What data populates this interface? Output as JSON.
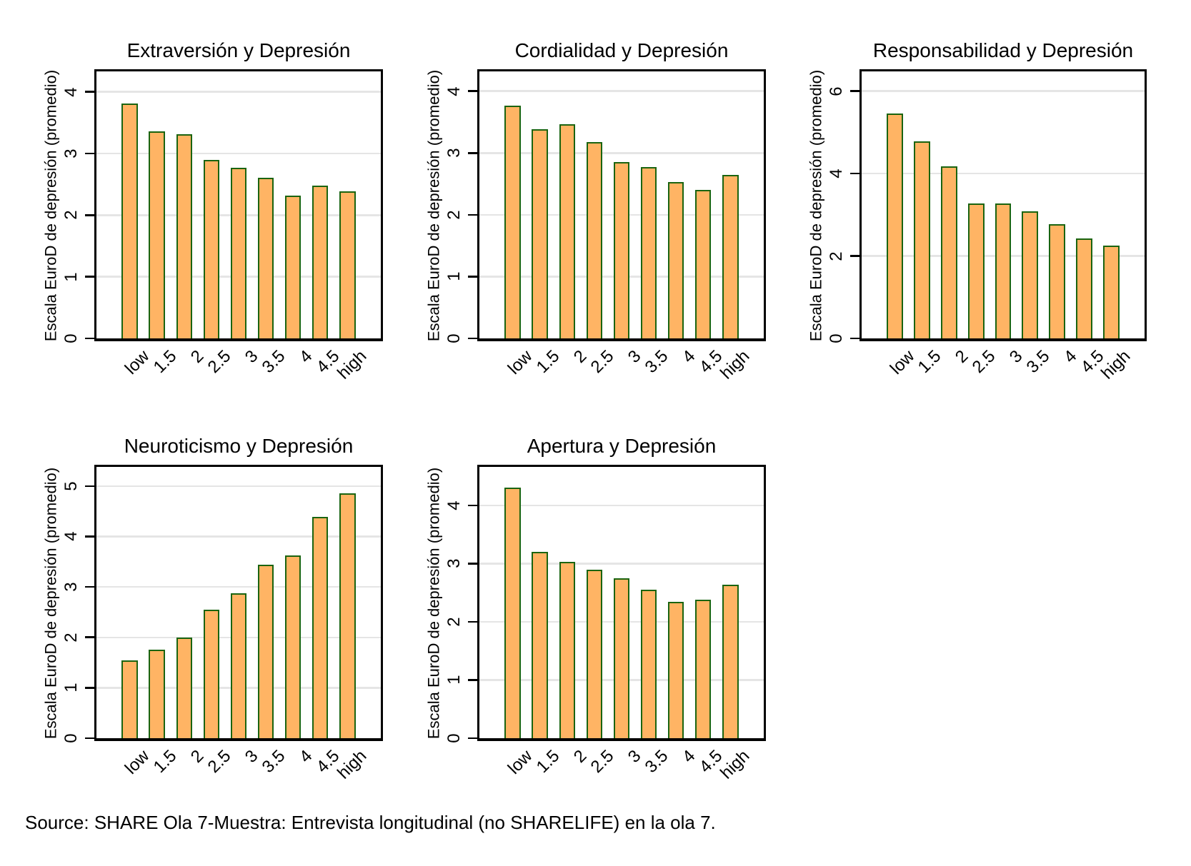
{
  "figure": {
    "source_note": "Source: SHARE Ola 7-Muestra: Entrevista longitudinal (no SHARELIFE) en la ola 7.",
    "colors": {
      "bar_fill": "#FFB464",
      "bar_border": "#1A6410",
      "gridline": "#E5E5E5",
      "frame": "#000000",
      "background": "#FFFFFF"
    }
  },
  "chart_data": [
    {
      "type": "bar",
      "title": "Extraversión y Depresión",
      "xlabel": "",
      "ylabel": "Escala EuroD de depresión (promedio)",
      "categories": [
        "low",
        "1.5",
        "2",
        "2.5",
        "3",
        "3.5",
        "4",
        "4.5",
        "high"
      ],
      "values": [
        3.81,
        3.36,
        3.31,
        2.89,
        2.77,
        2.61,
        2.31,
        2.48,
        2.39
      ],
      "yticks": [
        0,
        1,
        2,
        3,
        4
      ],
      "ylim": [
        0,
        4.33
      ],
      "grid": true,
      "legend": "none"
    },
    {
      "type": "bar",
      "title": "Cordialidad y Depresión",
      "xlabel": "",
      "ylabel": "Escala EuroD de depresión (promedio)",
      "categories": [
        "low",
        "1.5",
        "2",
        "2.5",
        "3",
        "3.5",
        "4",
        "4.5",
        "high"
      ],
      "values": [
        3.77,
        3.38,
        3.46,
        3.18,
        2.85,
        2.77,
        2.53,
        2.4,
        2.65
      ],
      "yticks": [
        0,
        1,
        2,
        3,
        4
      ],
      "ylim": [
        0,
        4.32
      ],
      "grid": true,
      "legend": "none"
    },
    {
      "type": "bar",
      "title": "Responsabilidad y Depresión",
      "xlabel": "",
      "ylabel": "Escala EuroD de depresión (promedio)",
      "categories": [
        "low",
        "1.5",
        "2",
        "2.5",
        "3",
        "3.5",
        "4",
        "4.5",
        "high"
      ],
      "values": [
        5.46,
        4.79,
        4.18,
        3.28,
        3.27,
        3.08,
        2.77,
        2.42,
        2.25
      ],
      "yticks": [
        0,
        2,
        4,
        6
      ],
      "ylim": [
        0,
        6.48
      ],
      "grid": true,
      "legend": "none"
    },
    {
      "type": "bar",
      "title": "Neuroticismo y Depresión",
      "xlabel": "",
      "ylabel": "Escala EuroD de depresión (promedio)",
      "categories": [
        "low",
        "1.5",
        "2",
        "2.5",
        "3",
        "3.5",
        "4",
        "4.5",
        "high"
      ],
      "values": [
        1.55,
        1.76,
        1.99,
        2.55,
        2.88,
        3.44,
        3.63,
        4.39,
        4.85
      ],
      "yticks": [
        0,
        1,
        2,
        3,
        4,
        5
      ],
      "ylim": [
        0,
        5.38
      ],
      "grid": true,
      "legend": "none"
    },
    {
      "type": "bar",
      "title": "Apertura y Depresión",
      "xlabel": "",
      "ylabel": "Escala EuroD de depresión (promedio)",
      "categories": [
        "low",
        "1.5",
        "2",
        "2.5",
        "3",
        "3.5",
        "4",
        "4.5",
        "high"
      ],
      "values": [
        4.31,
        3.2,
        3.03,
        2.9,
        2.75,
        2.55,
        2.34,
        2.38,
        2.64
      ],
      "yticks": [
        0,
        1,
        2,
        3,
        4
      ],
      "ylim": [
        0,
        4.66
      ],
      "grid": true,
      "legend": "none"
    }
  ]
}
